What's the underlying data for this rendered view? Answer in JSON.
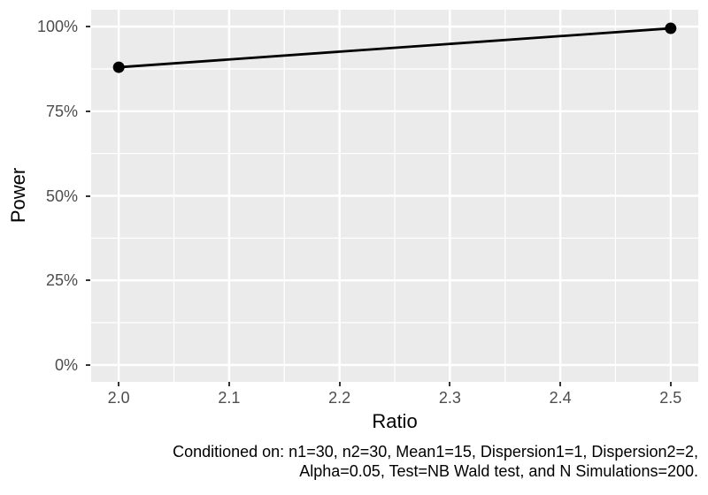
{
  "figure": {
    "xlabel": "Ratio",
    "ylabel": "Power",
    "caption_line1": "Conditioned on: n1=30, n2=30, Mean1=15, Dispersion1=1, Dispersion2=2,",
    "caption_line2": "Alpha=0.05, Test=NB Wald test, and N Simulations=200."
  },
  "chart_data": {
    "type": "line",
    "title": "",
    "xlabel": "Ratio",
    "ylabel": "Power",
    "x": [
      2.0,
      2.5
    ],
    "series": [
      {
        "name": "Power",
        "values": [
          0.88,
          0.995
        ]
      }
    ],
    "x_ticks": {
      "values": [
        2.0,
        2.1,
        2.2,
        2.3,
        2.4,
        2.5
      ],
      "labels": [
        "2.0",
        "2.1",
        "2.2",
        "2.3",
        "2.4",
        "2.5"
      ]
    },
    "y_ticks": {
      "values": [
        0,
        0.25,
        0.5,
        0.75,
        1.0
      ],
      "labels": [
        "0%",
        "25%",
        "50%",
        "75%",
        "100%"
      ]
    },
    "x_minor": [
      2.05,
      2.15,
      2.25,
      2.35,
      2.45
    ],
    "y_minor": [
      0.125,
      0.375,
      0.625,
      0.875
    ],
    "xlim": [
      1.975,
      2.525
    ],
    "ylim": [
      -0.05,
      1.05
    ],
    "grid": true,
    "legend": "none",
    "caption": "Conditioned on: n1=30, n2=30, Mean1=15, Dispersion1=1, Dispersion2=2, Alpha=0.05, Test=NB Wald test, and N Simulations=200.",
    "colors": {
      "panel_bg": "#EBEBEB",
      "grid": "#FFFFFF",
      "line": "#000000",
      "point": "#000000",
      "tick_label": "#4D4D4D",
      "tick_mark": "#333333",
      "axis_title": "#000000",
      "caption": "#000000"
    }
  }
}
